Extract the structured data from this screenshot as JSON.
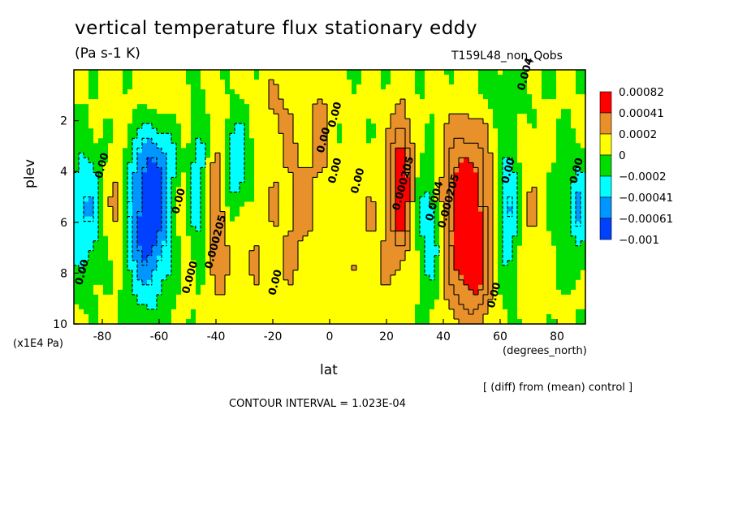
{
  "chart_data": {
    "type": "heatmap",
    "title": "vertical temperature flux stationary eddy",
    "units": "(Pa s-1 K)",
    "run_label": "T159L48_non_Qobs",
    "xlabel": "lat",
    "x_units": "(degrees_north)",
    "ylabel": "plev",
    "y_units": "(x1E4 Pa)",
    "x_range": [
      -90,
      90
    ],
    "y_range": [
      0,
      10
    ],
    "y_inverted": true,
    "x_ticks": [
      -80,
      -60,
      -40,
      -20,
      0,
      20,
      40,
      60,
      80
    ],
    "x_tick_labels": [
      "-80",
      "-60",
      "-40",
      "-20",
      "0",
      "20",
      "40",
      "60",
      "80"
    ],
    "y_ticks": [
      2,
      4,
      6,
      8,
      10
    ],
    "y_tick_labels": [
      "2",
      "4",
      "6",
      "8",
      "10"
    ],
    "note": "[ (diff) from (mean) control ]",
    "contour_interval": "CONTOUR INTERVAL = 1.023E-04",
    "colorbar": {
      "colors": [
        "#ff0000",
        "#e8902a",
        "#ffff00",
        "#00dd00",
        "#00ffff",
        "#0096ff",
        "#0040ff"
      ],
      "labels": [
        "0.00082",
        "0.00041",
        "0.0002",
        "0",
        "−0.0002",
        "−0.00041",
        "−0.00061",
        "−0.001"
      ]
    },
    "contour_labels": [
      {
        "text": "0.00",
        "lat": -86,
        "p": 8.0
      },
      {
        "text": "0.00",
        "lat": -79,
        "p": 3.8
      },
      {
        "text": "0.00",
        "lat": -52,
        "p": 5.2
      },
      {
        "text": "0.000",
        "lat": -48,
        "p": 8.2
      },
      {
        "text": "0.000205",
        "lat": -39,
        "p": 6.8
      },
      {
        "text": "0.00",
        "lat": -18,
        "p": 8.4
      },
      {
        "text": "0.00",
        "lat": 3,
        "p": 1.8
      },
      {
        "text": "0.00",
        "lat": 3,
        "p": 4.0
      },
      {
        "text": "0.00",
        "lat": 11,
        "p": 4.4
      },
      {
        "text": "0.000205",
        "lat": 27,
        "p": 4.5
      },
      {
        "text": "0.0004",
        "lat": 38,
        "p": 5.2
      },
      {
        "text": "0.000205",
        "lat": 43,
        "p": 5.2
      },
      {
        "text": "0.00",
        "lat": 64,
        "p": 4.0
      },
      {
        "text": "0.00",
        "lat": 88,
        "p": 4.0
      },
      {
        "text": "0.00",
        "lat": 59,
        "p": 8.9
      },
      {
        "text": "0.00",
        "lat": -1,
        "p": 2.8
      },
      {
        "text": "0.004",
        "lat": 70,
        "p": 0.2
      }
    ]
  }
}
